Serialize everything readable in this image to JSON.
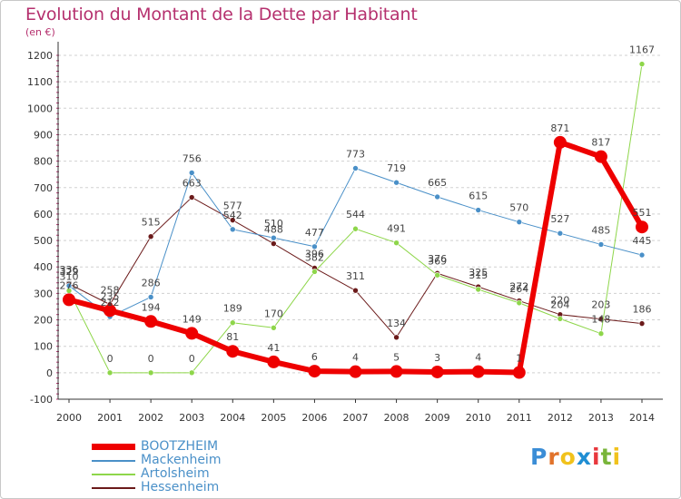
{
  "title": "Evolution du Montant de la Dette par Habitant",
  "subtitle": "(en €)",
  "logo": {
    "letters": [
      "P",
      "r",
      "o",
      "x",
      "i",
      "t",
      "i"
    ],
    "colors": [
      "#3b8dd6",
      "#e1732b",
      "#f1c21c",
      "#1f8ed3",
      "#e8383d",
      "#79b53a",
      "#f1c21c"
    ]
  },
  "chart_data": {
    "type": "line",
    "categories": [
      "2000",
      "2001",
      "2002",
      "2003",
      "2004",
      "2005",
      "2006",
      "2007",
      "2008",
      "2009",
      "2010",
      "2011",
      "2012",
      "2013",
      "2014"
    ],
    "ylim": [
      -100,
      1200
    ],
    "yticks": [
      "-100",
      "0",
      "100",
      "200",
      "300",
      "400",
      "500",
      "600",
      "700",
      "800",
      "900",
      "1000",
      "1100",
      "1200"
    ],
    "grid": "horizontal dashed",
    "legend_position": "bottom-left",
    "series": [
      {
        "name": "BOOTZHEIM",
        "color": "#ee0000",
        "width": 6,
        "marker": 7,
        "values": [
          276,
          235,
          194,
          149,
          81,
          41,
          6,
          4,
          5,
          3,
          4,
          1,
          871,
          817,
          551
        ],
        "labels": [
          "276",
          "235",
          "194",
          "149",
          "81",
          "41",
          "6",
          "4",
          "5",
          "3",
          "4",
          "1",
          "871",
          "817",
          "551"
        ]
      },
      {
        "name": "Mackenheim",
        "color": "#4a90c8",
        "width": 1,
        "marker": 3,
        "values": [
          329,
          212,
          286,
          756,
          542,
          510,
          477,
          773,
          719,
          665,
          615,
          570,
          527,
          485,
          445
        ],
        "labels": [
          "329",
          "212",
          "286",
          "756",
          "542",
          "510",
          "477",
          "773",
          "719",
          "665",
          "615",
          "570",
          "527",
          "485",
          "445"
        ]
      },
      {
        "name": "Artolsheim",
        "color": "#8ed64a",
        "width": 1,
        "marker": 3,
        "values": [
          310,
          0,
          0,
          0,
          189,
          170,
          382,
          544,
          491,
          369,
          315,
          264,
          204,
          148,
          1167
        ],
        "labels": [
          "310",
          "0",
          "0",
          "0",
          "189",
          "170",
          "382",
          "544",
          "491",
          "369",
          "315",
          "264",
          "204",
          "148",
          "1167"
        ]
      },
      {
        "name": "Hessenheim",
        "color": "#6b1a1a",
        "width": 1,
        "marker": 3,
        "values": [
          336,
          258,
          515,
          663,
          577,
          488,
          396,
          311,
          134,
          376,
          325,
          272,
          220,
          203,
          186
        ],
        "labels": [
          "336",
          "258",
          "515",
          "663",
          "577",
          "488",
          "396",
          "311",
          "134",
          "376",
          "325",
          "272",
          "220",
          "203",
          "186"
        ]
      }
    ]
  }
}
